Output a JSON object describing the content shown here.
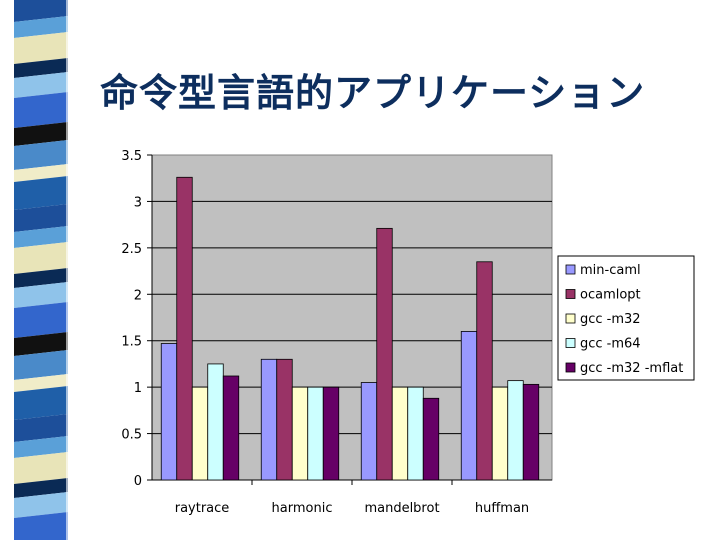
{
  "slide": {
    "title": "命令型言語的アプリケーション"
  },
  "colors": {
    "title": "#0d2e5e",
    "plot_background": "#c0c0c0",
    "gridline": "#000000"
  },
  "chart_data": {
    "type": "bar",
    "title": "",
    "xlabel": "",
    "ylabel": "",
    "categories": [
      "raytrace",
      "harmonic",
      "mandelbrot",
      "huffman"
    ],
    "ylim": [
      0,
      3.5
    ],
    "yticks": [
      "0",
      "0.5",
      "1",
      "1.5",
      "2",
      "2.5",
      "3",
      "3.5"
    ],
    "grid": true,
    "legend_position": "right",
    "series": [
      {
        "name": "min-caml",
        "color": "#9999ff",
        "values": [
          1.47,
          1.3,
          1.05,
          1.6
        ]
      },
      {
        "name": "ocamlopt",
        "color": "#993366",
        "values": [
          3.26,
          1.3,
          2.71,
          2.35
        ]
      },
      {
        "name": "gcc -m32",
        "color": "#ffffcc",
        "values": [
          1.0,
          1.0,
          1.0,
          1.0
        ]
      },
      {
        "name": "gcc -m64",
        "color": "#ccffff",
        "values": [
          1.25,
          1.0,
          1.0,
          1.07
        ]
      },
      {
        "name": "gcc -m32 -mflat",
        "color": "#660066",
        "values": [
          1.12,
          1.0,
          0.88,
          1.03
        ]
      }
    ]
  }
}
